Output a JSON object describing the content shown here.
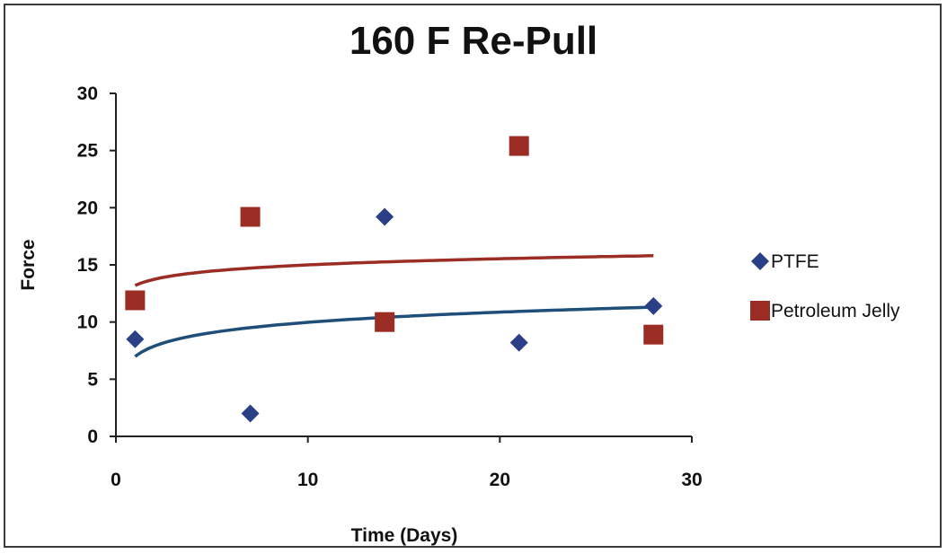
{
  "chart_data": {
    "type": "scatter",
    "title": "160 F Re-Pull",
    "xlabel": "Time (Days)",
    "ylabel": "Force",
    "xlim": [
      0,
      30
    ],
    "ylim": [
      0,
      30
    ],
    "x_ticks": [
      0,
      10,
      20,
      30
    ],
    "y_ticks": [
      0,
      5,
      10,
      15,
      20,
      25,
      30
    ],
    "grid": false,
    "legend_position": "right",
    "series": [
      {
        "name": "PTFE",
        "marker": "diamond",
        "color": "#2b3f86",
        "x": [
          1,
          7,
          14,
          21,
          28
        ],
        "y": [
          8.5,
          2,
          19.2,
          8.2,
          11.4
        ],
        "trendline": {
          "type": "logarithmic",
          "color": "#1f4e79",
          "x_range": [
            1,
            28
          ],
          "y_start": 7.0,
          "y_end": 11.3
        }
      },
      {
        "name": "Petroleum Jelly",
        "marker": "square",
        "color": "#9b2d24",
        "x": [
          1,
          7,
          14,
          21,
          28
        ],
        "y": [
          11.9,
          19.2,
          10,
          25.4,
          8.9
        ],
        "trendline": {
          "type": "logarithmic",
          "color": "#9b2d24",
          "x_range": [
            1,
            28
          ],
          "y_start": 13.2,
          "y_end": 15.8
        }
      }
    ]
  }
}
